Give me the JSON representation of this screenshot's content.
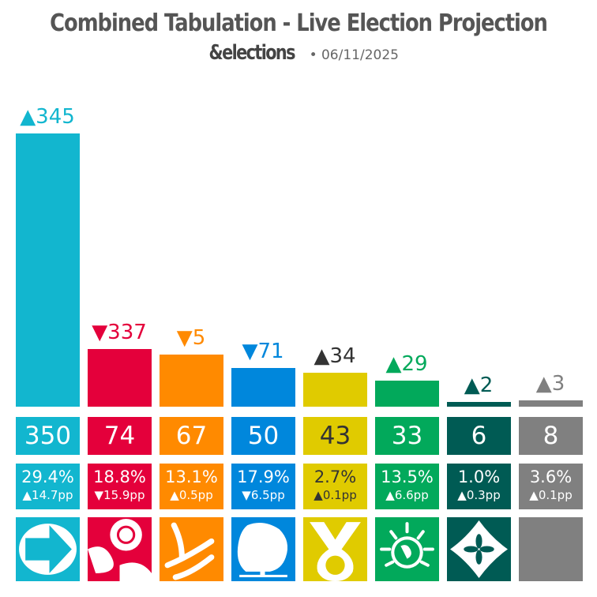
{
  "title": "Combined Tabulation - Live Election Projection",
  "brand": "&elections",
  "date": "• 06/11/2025",
  "chart_data": {
    "type": "bar",
    "ylim": [
      0,
      350
    ],
    "parties": [
      {
        "logo": "arrow-logo",
        "color": "#12B6CF",
        "text": "#ffffff",
        "seats": 350,
        "change": "▲345",
        "changeColor": "#12B6CF",
        "pct": "29.4%",
        "pp": "▲14.7pp"
      },
      {
        "logo": "rose-logo",
        "color": "#E4003B",
        "text": "#ffffff",
        "seats": 74,
        "change": "▼337",
        "changeColor": "#E4003B",
        "pct": "18.8%",
        "pp": "▼15.9pp"
      },
      {
        "logo": "bird-logo",
        "color": "#FF8A00",
        "text": "#ffffff",
        "seats": 67,
        "change": "▼5",
        "changeColor": "#FF8A00",
        "pct": "13.1%",
        "pp": "▲0.5pp"
      },
      {
        "logo": "tree-logo",
        "color": "#0087DC",
        "text": "#ffffff",
        "seats": 50,
        "change": "▼71",
        "changeColor": "#0087DC",
        "pct": "17.9%",
        "pp": "▼6.5pp"
      },
      {
        "logo": "saltire-loop-logo",
        "color": "#E0CB00",
        "text": "#333333",
        "seats": 43,
        "change": "▲34",
        "changeColor": "#333333",
        "pct": "2.7%",
        "pp": "▲0.1pp"
      },
      {
        "logo": "earth-logo",
        "color": "#02A95B",
        "text": "#ffffff",
        "seats": 33,
        "change": "▲29",
        "changeColor": "#02A95B",
        "pct": "13.5%",
        "pp": "▲6.6pp"
      },
      {
        "logo": "flower-logo",
        "color": "#005B54",
        "text": "#ffffff",
        "seats": 6,
        "change": "▲2",
        "changeColor": "#005B54",
        "pct": "1.0%",
        "pp": "▲0.3pp"
      },
      {
        "logo": "none",
        "color": "#808080",
        "text": "#ffffff",
        "seats": 8,
        "change": "▲3",
        "changeColor": "#808080",
        "pct": "3.6%",
        "pp": "▲0.1pp"
      }
    ]
  }
}
